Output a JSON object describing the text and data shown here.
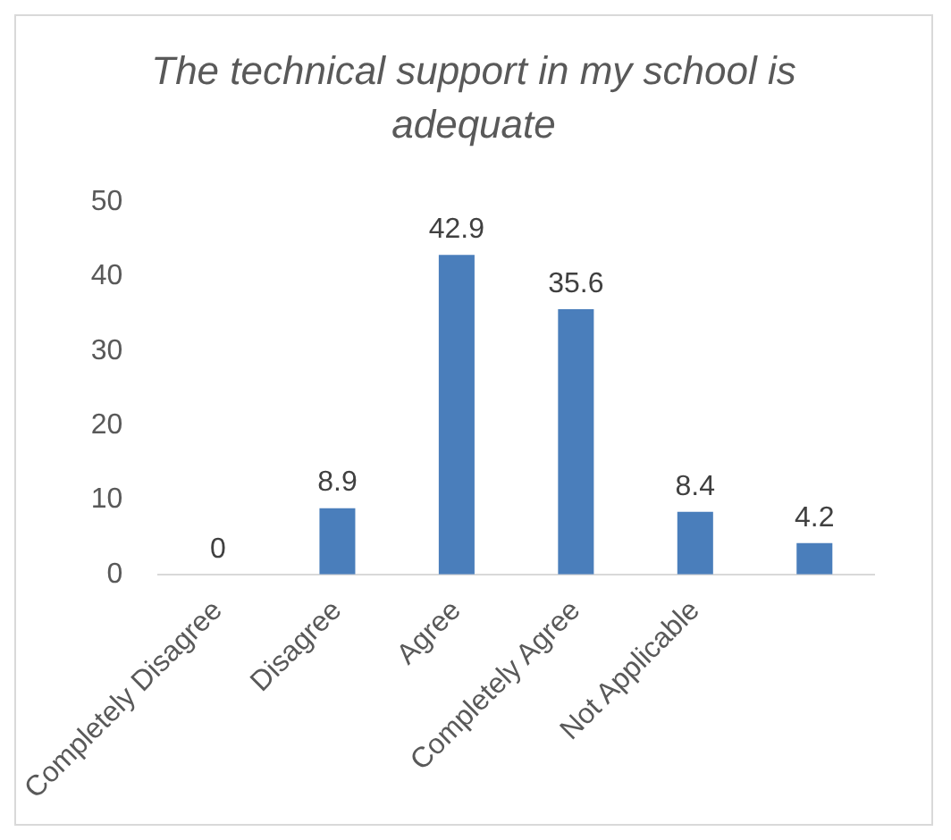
{
  "chart_data": {
    "type": "bar",
    "title": "The technical support in my school is adequate",
    "categories": [
      "Completely Disagree",
      "Disagree",
      "Agree",
      "Completely Agree",
      "Not Applicable",
      null
    ],
    "values": [
      0,
      8.9,
      42.9,
      35.6,
      8.4,
      4.2
    ],
    "color": "#4a7ebb",
    "ylim": [
      0,
      50
    ],
    "yticks": [
      0,
      10,
      20,
      30,
      40,
      50
    ],
    "grid": false,
    "data_labels": true
  }
}
